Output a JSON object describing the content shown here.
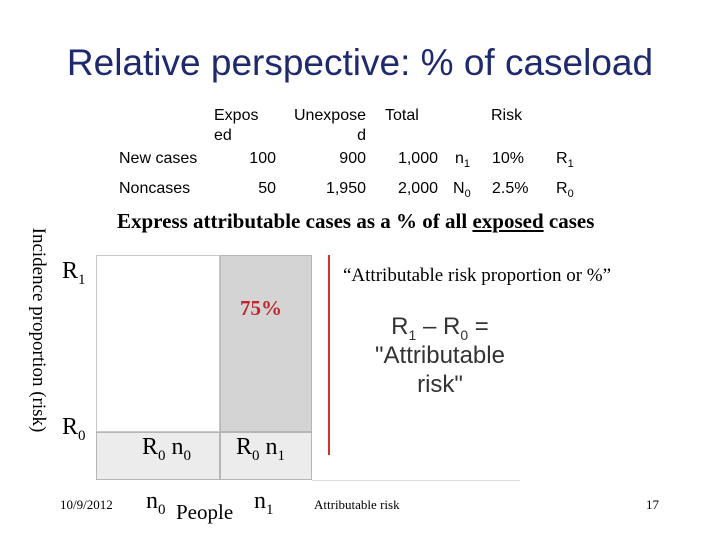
{
  "title": "Relative perspective: % of caseload",
  "table": {
    "headers": {
      "exposed": [
        "Expos",
        "ed"
      ],
      "unexposed": [
        "Unexpose",
        "d"
      ],
      "total": "Total",
      "risk": "Risk"
    },
    "rows": [
      {
        "label": "New cases",
        "exposed": "100",
        "unexposed": "900",
        "total": "1,000",
        "n_base": "n",
        "n_sub": "1",
        "risk": "10%",
        "r_base": "R",
        "r_sub": "1"
      },
      {
        "label": "Noncases",
        "exposed": "50",
        "unexposed": "1,950",
        "total": "2,000",
        "n_base": "N",
        "n_sub": "0",
        "risk": "2.5%",
        "r_base": "R",
        "r_sub": "0"
      }
    ]
  },
  "headline": {
    "pre": "Express attributable cases as a % of all ",
    "emph": "exposed",
    "post": " cases"
  },
  "quote": "“Attributable risk proportion or %”",
  "y_axis_label": "Incidence proportion (risk)",
  "r1": {
    "base": "R",
    "sub": "1"
  },
  "r0": {
    "base": "R",
    "sub": "0"
  },
  "percent": "75%",
  "formula": {
    "r1b": "R",
    "r1s": "1",
    "minus": " – ",
    "r0b": "R",
    "r0s": "0",
    "eq": " =",
    "line2": "\"Attributable",
    "line3": "risk\""
  },
  "box_r0n0": {
    "b1": "R",
    "s1": "0",
    "b2": " n",
    "s2": "0"
  },
  "box_r0n1": {
    "b1": "R",
    "s1": "0",
    "b2": " n",
    "s2": "1"
  },
  "x_n0": {
    "base": "n",
    "sub": "0"
  },
  "x_n1": {
    "base": "n",
    "sub": "1"
  },
  "people": "People",
  "footer": {
    "date": "10/9/2012",
    "center": "Attributable risk",
    "page": "17"
  },
  "colors": {
    "title": "#1f2a6e",
    "percent": "#c0282d",
    "risk_line": "#d2322d",
    "box_fill": "#d4d4d4",
    "box_fill_light": "#ececec"
  }
}
